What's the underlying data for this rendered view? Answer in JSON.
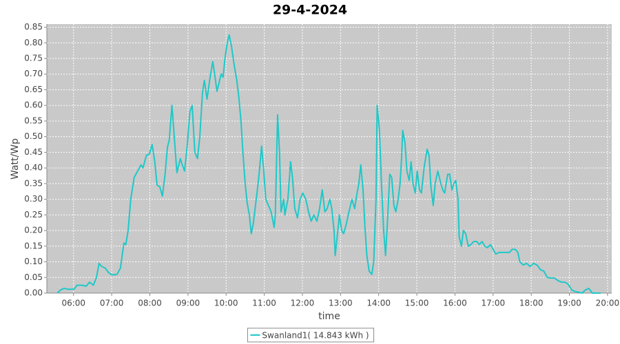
{
  "chart_data": {
    "type": "line",
    "title": "29-4-2024",
    "x_label": "time",
    "y_label": "Watt/Wp",
    "x": [
      5.57,
      5.66,
      5.75,
      5.87,
      6.02,
      6.09,
      6.23,
      6.33,
      6.42,
      6.52,
      6.6,
      6.67,
      6.74,
      6.83,
      6.92,
      7.01,
      7.14,
      7.23,
      7.32,
      7.37,
      7.43,
      7.5,
      7.59,
      7.68,
      7.77,
      7.82,
      7.91,
      7.99,
      8.06,
      8.13,
      8.19,
      8.26,
      8.33,
      8.4,
      8.46,
      8.51,
      8.58,
      8.64,
      8.71,
      8.8,
      8.85,
      8.91,
      8.98,
      9.05,
      9.11,
      9.18,
      9.25,
      9.31,
      9.38,
      9.43,
      9.5,
      9.58,
      9.65,
      9.7,
      9.76,
      9.81,
      9.87,
      9.92,
      9.97,
      10.03,
      10.08,
      10.14,
      10.21,
      10.28,
      10.33,
      10.39,
      10.44,
      10.5,
      10.55,
      10.61,
      10.66,
      10.71,
      10.77,
      10.82,
      10.88,
      10.93,
      10.98,
      11.04,
      11.11,
      11.18,
      11.26,
      11.29,
      11.35,
      11.4,
      11.44,
      11.51,
      11.54,
      11.62,
      11.69,
      11.74,
      11.8,
      11.87,
      11.94,
      12.01,
      12.09,
      12.16,
      12.23,
      12.3,
      12.38,
      12.45,
      12.52,
      12.59,
      12.65,
      12.72,
      12.77,
      12.83,
      12.86,
      12.92,
      12.97,
      13.03,
      13.08,
      13.15,
      13.22,
      13.3,
      13.37,
      13.42,
      13.48,
      13.53,
      13.59,
      13.64,
      13.69,
      13.75,
      13.82,
      13.87,
      13.93,
      13.96,
      14.02,
      14.07,
      14.13,
      14.18,
      14.24,
      14.29,
      14.34,
      14.4,
      14.45,
      14.51,
      14.56,
      14.6,
      14.63,
      14.69,
      14.74,
      14.8,
      14.85,
      14.9,
      14.96,
      15.01,
      15.07,
      15.12,
      15.19,
      15.27,
      15.32,
      15.37,
      15.43,
      15.48,
      15.55,
      15.63,
      15.68,
      15.73,
      15.81,
      15.86,
      15.92,
      15.97,
      16.02,
      16.08,
      16.11,
      16.17,
      16.22,
      16.28,
      16.35,
      16.42,
      16.49,
      16.57,
      16.64,
      16.71,
      16.78,
      16.85,
      16.93,
      17.0,
      17.07,
      17.16,
      17.25,
      17.34,
      17.43,
      17.5,
      17.58,
      17.65,
      17.7,
      17.79,
      17.88,
      17.97,
      18.06,
      18.15,
      18.24,
      18.33,
      18.42,
      18.52,
      18.61,
      18.7,
      18.79,
      18.88,
      18.97,
      19.06,
      19.15,
      19.24,
      19.33,
      19.42,
      19.51,
      19.6,
      19.82
    ],
    "series": [
      {
        "name": "Swanland1( 14.843 kWh )",
        "color": "#1ec8c8",
        "values": [
          0,
          0.01,
          0.015,
          0.012,
          0.013,
          0.025,
          0.025,
          0.022,
          0.035,
          0.025,
          0.05,
          0.095,
          0.085,
          0.08,
          0.065,
          0.058,
          0.06,
          0.08,
          0.16,
          0.155,
          0.2,
          0.3,
          0.37,
          0.39,
          0.41,
          0.4,
          0.44,
          0.445,
          0.475,
          0.42,
          0.345,
          0.34,
          0.31,
          0.38,
          0.465,
          0.49,
          0.6,
          0.5,
          0.385,
          0.43,
          0.41,
          0.39,
          0.47,
          0.58,
          0.6,
          0.45,
          0.43,
          0.5,
          0.64,
          0.68,
          0.62,
          0.69,
          0.74,
          0.7,
          0.645,
          0.67,
          0.7,
          0.69,
          0.75,
          0.8,
          0.825,
          0.79,
          0.73,
          0.68,
          0.63,
          0.55,
          0.45,
          0.35,
          0.29,
          0.25,
          0.19,
          0.22,
          0.28,
          0.33,
          0.4,
          0.47,
          0.4,
          0.3,
          0.28,
          0.26,
          0.21,
          0.25,
          0.57,
          0.45,
          0.26,
          0.3,
          0.25,
          0.3,
          0.42,
          0.37,
          0.27,
          0.24,
          0.3,
          0.32,
          0.3,
          0.26,
          0.23,
          0.25,
          0.23,
          0.27,
          0.33,
          0.26,
          0.27,
          0.3,
          0.27,
          0.2,
          0.12,
          0.19,
          0.25,
          0.2,
          0.19,
          0.22,
          0.26,
          0.3,
          0.27,
          0.31,
          0.35,
          0.41,
          0.33,
          0.21,
          0.12,
          0.07,
          0.06,
          0.1,
          0.3,
          0.6,
          0.52,
          0.36,
          0.2,
          0.12,
          0.25,
          0.38,
          0.37,
          0.28,
          0.26,
          0.3,
          0.35,
          0.43,
          0.52,
          0.48,
          0.39,
          0.36,
          0.42,
          0.35,
          0.32,
          0.39,
          0.33,
          0.32,
          0.4,
          0.46,
          0.44,
          0.34,
          0.28,
          0.35,
          0.39,
          0.35,
          0.33,
          0.32,
          0.38,
          0.38,
          0.33,
          0.35,
          0.36,
          0.3,
          0.18,
          0.15,
          0.2,
          0.19,
          0.15,
          0.155,
          0.165,
          0.165,
          0.155,
          0.165,
          0.15,
          0.145,
          0.155,
          0.14,
          0.125,
          0.13,
          0.13,
          0.13,
          0.13,
          0.14,
          0.14,
          0.13,
          0.1,
          0.09,
          0.095,
          0.085,
          0.095,
          0.09,
          0.075,
          0.07,
          0.05,
          0.048,
          0.048,
          0.04,
          0.035,
          0.035,
          0.028,
          0.01,
          0.005,
          0.003,
          0,
          0.01,
          0.015,
          0,
          0
        ]
      }
    ],
    "xlim": [
      5.3,
      20.11
    ],
    "xticks": [
      {
        "value": 6,
        "label": "06:00"
      },
      {
        "value": 7,
        "label": "07:00"
      },
      {
        "value": 8,
        "label": "08:00"
      },
      {
        "value": 9,
        "label": "09:00"
      },
      {
        "value": 10,
        "label": "10:00"
      },
      {
        "value": 11,
        "label": "11:00"
      },
      {
        "value": 12,
        "label": "12:00"
      },
      {
        "value": 13,
        "label": "13:00"
      },
      {
        "value": 14,
        "label": "14:00"
      },
      {
        "value": 15,
        "label": "15:00"
      },
      {
        "value": 16,
        "label": "16:00"
      },
      {
        "value": 17,
        "label": "17:00"
      },
      {
        "value": 18,
        "label": "18:00"
      },
      {
        "value": 19,
        "label": "19:00"
      },
      {
        "value": 20,
        "label": "20:00"
      }
    ],
    "ylim": [
      0,
      0.86
    ],
    "yticks": [
      {
        "value": 0,
        "label": "0.00"
      },
      0.05,
      {
        "value": 0.1,
        "label": "0.10"
      },
      0.15,
      {
        "value": 0.2,
        "label": "0.20"
      },
      0.25,
      {
        "value": 0.3,
        "label": "0.30"
      },
      0.35,
      {
        "value": 0.4,
        "label": "0.40"
      },
      0.45,
      {
        "value": 0.5,
        "label": "0.50"
      },
      0.55,
      {
        "value": 0.6,
        "label": "0.60"
      },
      0.65,
      {
        "value": 0.7,
        "label": "0.70"
      },
      0.75,
      {
        "value": 0.8,
        "label": "0.80"
      },
      0.85
    ],
    "grid": true,
    "plot_background": "#c9c9c9",
    "legend": "bottom"
  }
}
